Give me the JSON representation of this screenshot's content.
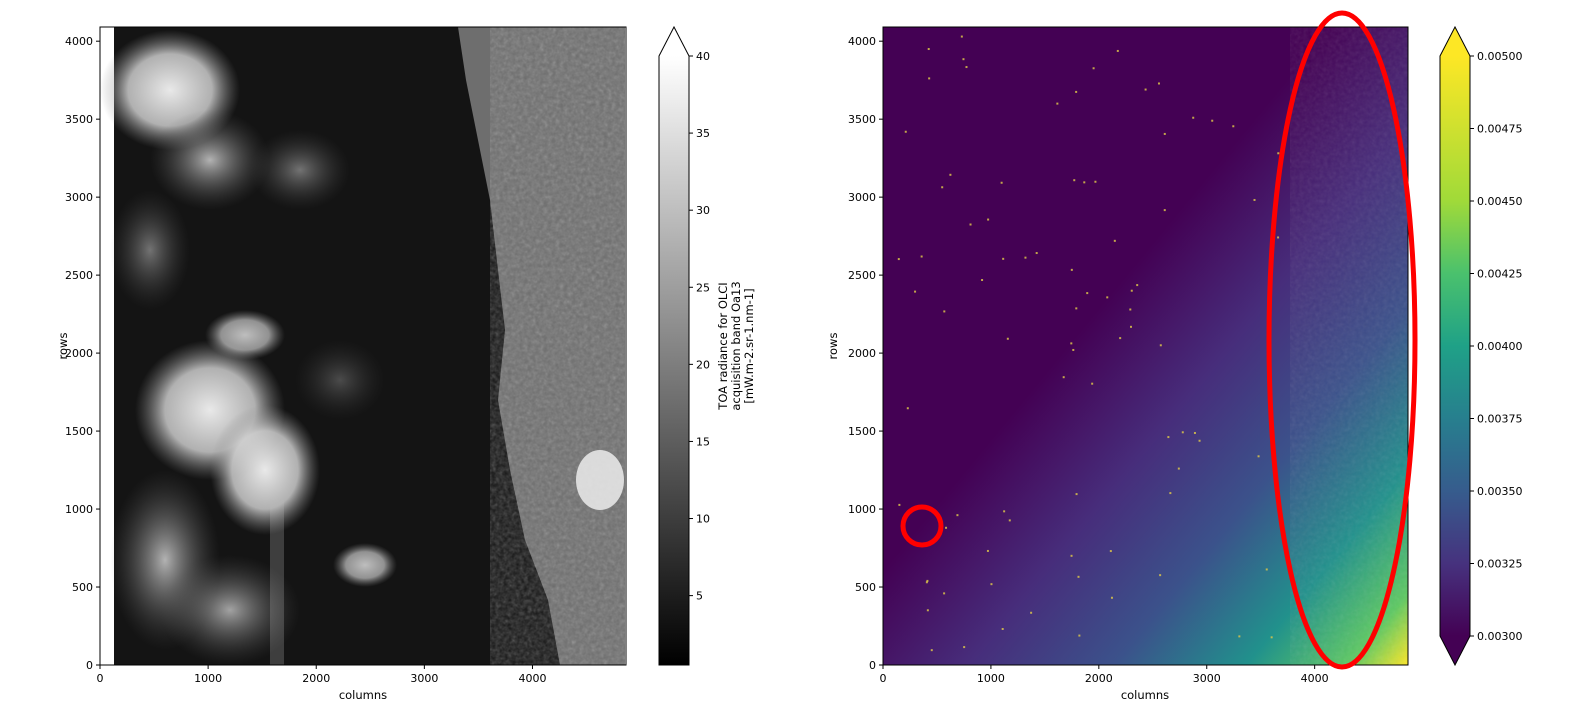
{
  "chart_data": [
    {
      "type": "heatmap",
      "xlabel": "columns",
      "ylabel": "rows",
      "xlim": [
        0,
        4865
      ],
      "ylim": [
        0,
        4091
      ],
      "xticks": [
        0,
        1000,
        2000,
        3000,
        4000
      ],
      "yticks": [
        0,
        500,
        1000,
        1500,
        2000,
        2500,
        3000,
        3500,
        4000
      ],
      "colormap": "gray",
      "colorbar": {
        "label_lines": [
          "TOA radiance for OLCI",
          "acquisition band Oa13",
          "[mW.m-2.sr-1.nm-1]"
        ],
        "ticks": [
          5,
          10,
          15,
          20,
          25,
          30,
          35,
          40
        ],
        "range": [
          0.5,
          40
        ],
        "extend": "max"
      }
    },
    {
      "type": "heatmap",
      "xlabel": "columns",
      "ylabel": "rows",
      "xlim": [
        0,
        4865
      ],
      "ylim": [
        0,
        4091
      ],
      "xticks": [
        0,
        1000,
        2000,
        3000,
        4000
      ],
      "yticks": [
        0,
        500,
        1000,
        1500,
        2000,
        2500,
        3000,
        3500,
        4000
      ],
      "colormap": "viridis",
      "colorbar": {
        "ticks": [
          "0.00300",
          "0.00325",
          "0.00350",
          "0.00375",
          "0.00400",
          "0.00425",
          "0.00450",
          "0.00475",
          "0.00500"
        ],
        "range": [
          0.003,
          0.005
        ],
        "extend": "both"
      },
      "annotations": [
        {
          "shape": "circle",
          "color": "#ff0000",
          "center": [
            360,
            880
          ]
        },
        {
          "shape": "ellipse",
          "color": "#ff0000",
          "center": [
            4270,
            2090
          ]
        }
      ]
    }
  ]
}
